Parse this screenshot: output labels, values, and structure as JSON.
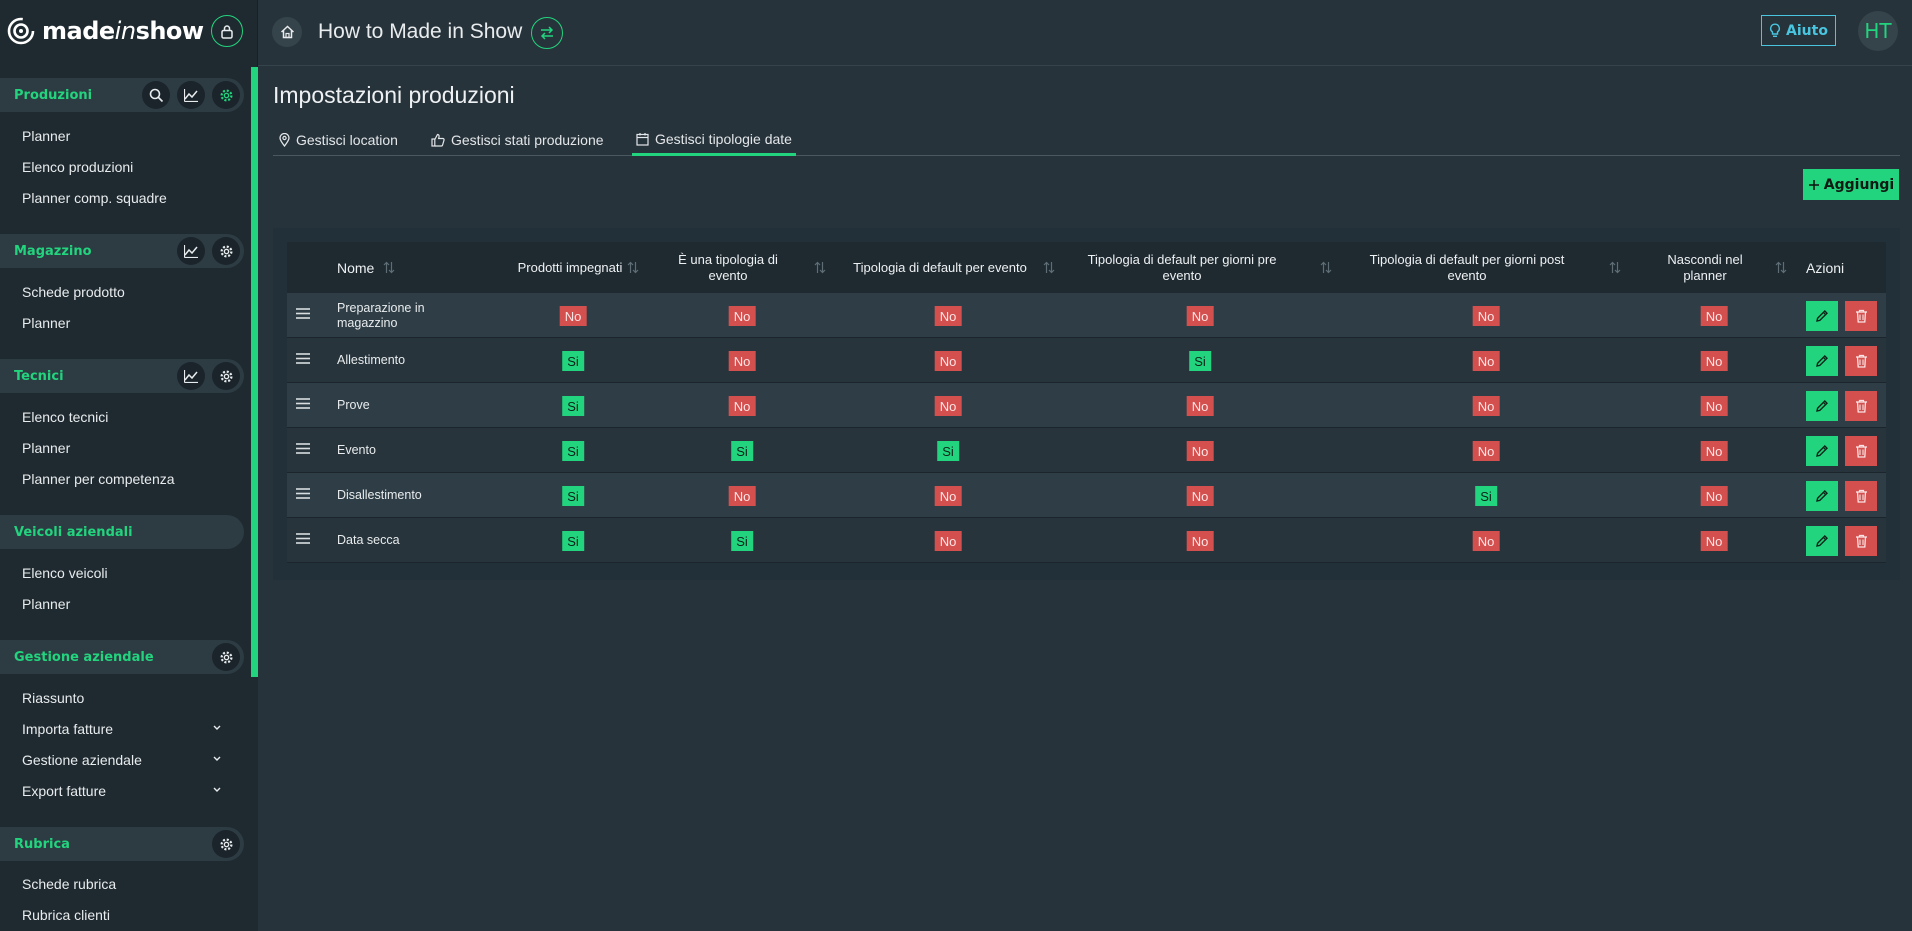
{
  "brand": {
    "logo_pre": "made",
    "logo_mid": "in",
    "logo_post": "show"
  },
  "colors": {
    "accent": "#22d47e",
    "danger": "#d4504f",
    "info": "#49c5e0",
    "background": "#27333a",
    "sidebar": "#1f2a30"
  },
  "sidebar": {
    "groups": [
      {
        "title": "Produzioni",
        "icons": [
          "search-icon",
          "chart-icon",
          "gear-icon"
        ],
        "items": [
          "Planner",
          "Elenco produzioni",
          "Planner comp. squadre"
        ]
      },
      {
        "title": "Magazzino",
        "icons": [
          "chart-icon",
          "gear-icon"
        ],
        "items": [
          "Schede prodotto",
          "Planner"
        ]
      },
      {
        "title": "Tecnici",
        "icons": [
          "chart-icon",
          "gear-icon"
        ],
        "items": [
          "Elenco tecnici",
          "Planner",
          "Planner per competenza"
        ]
      },
      {
        "title": "Veicoli aziendali",
        "icons": [],
        "items": [
          "Elenco veicoli",
          "Planner"
        ]
      },
      {
        "title": "Gestione aziendale",
        "icons": [
          "gear-icon"
        ],
        "items": [
          "Riassunto",
          "Importa fatture",
          "Gestione aziendale",
          "Export fatture"
        ]
      },
      {
        "title": "Rubrica",
        "icons": [
          "gear-icon"
        ],
        "items": [
          "Schede rubrica",
          "Rubrica clienti"
        ]
      }
    ]
  },
  "topbar": {
    "title": "How to Made in Show",
    "help_label": "Aiuto",
    "avatar_initials": "HT"
  },
  "page": {
    "title": "Impostazioni produzioni",
    "tabs": [
      {
        "label": "Gestisci location",
        "icon": "map-pin-icon"
      },
      {
        "label": "Gestisci stati produzione",
        "icon": "thumbs-up-icon"
      },
      {
        "label": "Gestisci tipologie date",
        "icon": "calendar-icon",
        "active": true
      }
    ],
    "add_label": "Aggiungi"
  },
  "table": {
    "headers": [
      "Nome",
      "Prodotti impegnati",
      "È una tipologia di evento",
      "Tipologia di default per evento",
      "Tipologia di default per giorni pre evento",
      "Tipologia di default per giorni post evento",
      "Nascondi nel planner",
      "Azioni"
    ],
    "rows": [
      {
        "name": "Preparazione in magazzino",
        "values": [
          "No",
          "No",
          "No",
          "No",
          "No",
          "No"
        ]
      },
      {
        "name": "Allestimento",
        "values": [
          "Si",
          "No",
          "No",
          "Si",
          "No",
          "No"
        ]
      },
      {
        "name": "Prove",
        "values": [
          "Si",
          "No",
          "No",
          "No",
          "No",
          "No"
        ]
      },
      {
        "name": "Evento",
        "values": [
          "Si",
          "Si",
          "Si",
          "No",
          "No",
          "No"
        ]
      },
      {
        "name": "Disallestimento",
        "values": [
          "Si",
          "No",
          "No",
          "No",
          "Si",
          "No"
        ]
      },
      {
        "name": "Data secca",
        "values": [
          "Si",
          "Si",
          "No",
          "No",
          "No",
          "No"
        ]
      }
    ]
  }
}
